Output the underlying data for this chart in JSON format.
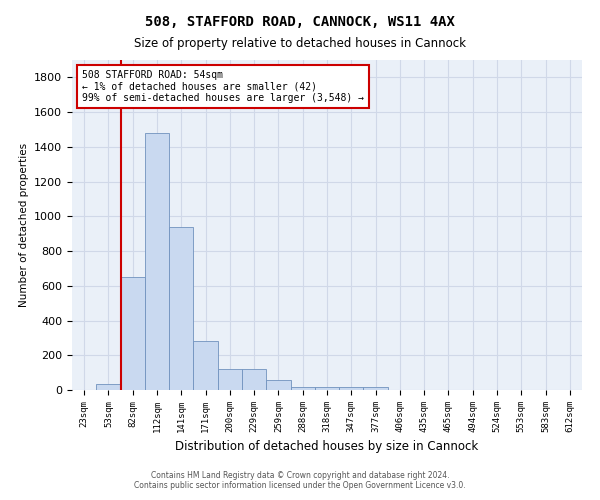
{
  "title_line1": "508, STAFFORD ROAD, CANNOCK, WS11 4AX",
  "title_line2": "Size of property relative to detached houses in Cannock",
  "xlabel": "Distribution of detached houses by size in Cannock",
  "ylabel": "Number of detached properties",
  "annotation_title": "508 STAFFORD ROAD: 54sqm",
  "annotation_line2": "← 1% of detached houses are smaller (42)",
  "annotation_line3": "99% of semi-detached houses are larger (3,548) →",
  "categories": [
    "23sqm",
    "53sqm",
    "82sqm",
    "112sqm",
    "141sqm",
    "171sqm",
    "200sqm",
    "229sqm",
    "259sqm",
    "288sqm",
    "318sqm",
    "347sqm",
    "377sqm",
    "406sqm",
    "435sqm",
    "465sqm",
    "494sqm",
    "524sqm",
    "553sqm",
    "583sqm",
    "612sqm"
  ],
  "values": [
    0,
    35,
    650,
    1480,
    940,
    285,
    120,
    120,
    60,
    20,
    20,
    15,
    15,
    0,
    0,
    0,
    0,
    0,
    0,
    0,
    0
  ],
  "bar_color": "#c9d9f0",
  "bar_edge_color": "#7092be",
  "vline_color": "#cc0000",
  "annotation_box_color": "#cc0000",
  "ylim": [
    0,
    1900
  ],
  "yticks": [
    0,
    200,
    400,
    600,
    800,
    1000,
    1200,
    1400,
    1600,
    1800
  ],
  "grid_color": "#d0d8e8",
  "background_color": "#eaf0f8",
  "footer_line1": "Contains HM Land Registry data © Crown copyright and database right 2024.",
  "footer_line2": "Contains public sector information licensed under the Open Government Licence v3.0."
}
